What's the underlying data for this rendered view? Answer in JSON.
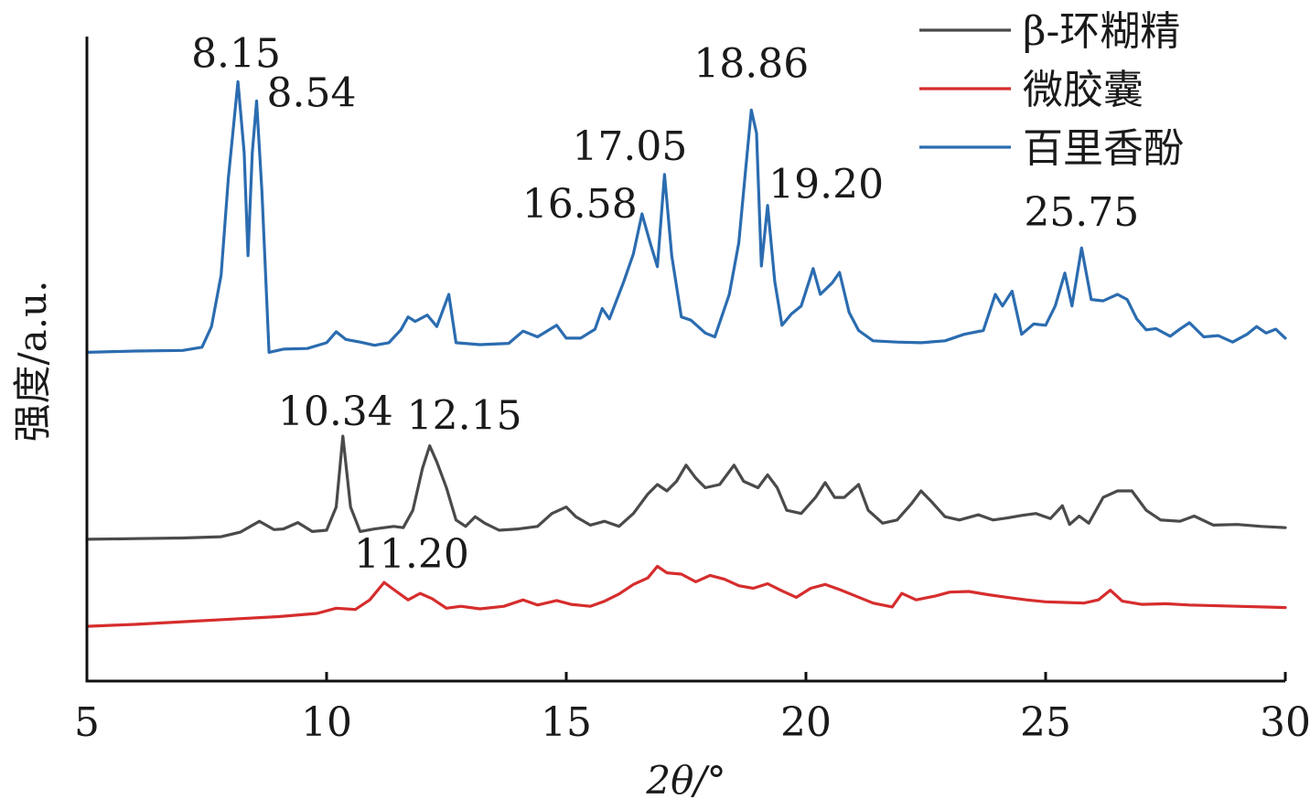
{
  "chart_data": {
    "type": "line",
    "title": "",
    "xlabel": "2θ/°",
    "ylabel": "强度/a.u.",
    "xlim": [
      5,
      30
    ],
    "ylim": [
      0,
      100
    ],
    "x_ticks": [
      "5",
      "10",
      "15",
      "20",
      "25",
      "30"
    ],
    "x_tick_values": [
      5,
      10,
      15,
      20,
      25,
      30
    ],
    "grid": false,
    "legend_position": "top-right",
    "series": [
      {
        "name": "β-环糊精",
        "color": "#4a4a4a",
        "points": [
          [
            5,
            22
          ],
          [
            6,
            22.1
          ],
          [
            7,
            22.2
          ],
          [
            7.8,
            22.4
          ],
          [
            8.2,
            23.1
          ],
          [
            8.6,
            24.8
          ],
          [
            8.9,
            23.5
          ],
          [
            9.1,
            23.6
          ],
          [
            9.4,
            24.6
          ],
          [
            9.7,
            23.2
          ],
          [
            10.0,
            23.4
          ],
          [
            10.2,
            27
          ],
          [
            10.34,
            38
          ],
          [
            10.5,
            27
          ],
          [
            10.7,
            23.2
          ],
          [
            11.0,
            23.6
          ],
          [
            11.4,
            24
          ],
          [
            11.6,
            23.8
          ],
          [
            11.8,
            26.5
          ],
          [
            12.0,
            33
          ],
          [
            12.15,
            36.5
          ],
          [
            12.3,
            34
          ],
          [
            12.5,
            30
          ],
          [
            12.7,
            25
          ],
          [
            12.9,
            24
          ],
          [
            13.1,
            25.5
          ],
          [
            13.3,
            24.5
          ],
          [
            13.6,
            23.4
          ],
          [
            14.0,
            23.6
          ],
          [
            14.4,
            24
          ],
          [
            14.7,
            26
          ],
          [
            15.0,
            27
          ],
          [
            15.2,
            25.5
          ],
          [
            15.5,
            24.2
          ],
          [
            15.8,
            24.8
          ],
          [
            16.1,
            24
          ],
          [
            16.4,
            26
          ],
          [
            16.7,
            29
          ],
          [
            16.9,
            30.5
          ],
          [
            17.1,
            29.5
          ],
          [
            17.3,
            31
          ],
          [
            17.5,
            33.5
          ],
          [
            17.7,
            31.5
          ],
          [
            17.9,
            30
          ],
          [
            18.2,
            30.5
          ],
          [
            18.5,
            33.5
          ],
          [
            18.7,
            31
          ],
          [
            19.0,
            30
          ],
          [
            19.2,
            32
          ],
          [
            19.4,
            30
          ],
          [
            19.6,
            26.5
          ],
          [
            19.9,
            26
          ],
          [
            20.2,
            28.5
          ],
          [
            20.4,
            30.8
          ],
          [
            20.6,
            28.5
          ],
          [
            20.8,
            28.5
          ],
          [
            21.1,
            30.5
          ],
          [
            21.3,
            26.5
          ],
          [
            21.6,
            24.5
          ],
          [
            21.9,
            25
          ],
          [
            22.2,
            27.5
          ],
          [
            22.4,
            29.5
          ],
          [
            22.6,
            28
          ],
          [
            22.9,
            25.5
          ],
          [
            23.2,
            25
          ],
          [
            23.6,
            25.8
          ],
          [
            23.9,
            25
          ],
          [
            24.2,
            25.3
          ],
          [
            24.5,
            25.7
          ],
          [
            24.8,
            26
          ],
          [
            25.1,
            25.2
          ],
          [
            25.35,
            27.2
          ],
          [
            25.5,
            24.3
          ],
          [
            25.7,
            25.6
          ],
          [
            25.9,
            24.5
          ],
          [
            26.2,
            28.5
          ],
          [
            26.5,
            29.5
          ],
          [
            26.8,
            29.5
          ],
          [
            27.1,
            26.5
          ],
          [
            27.4,
            25
          ],
          [
            27.8,
            24.8
          ],
          [
            28.1,
            25.6
          ],
          [
            28.5,
            24.2
          ],
          [
            29.0,
            24.3
          ],
          [
            29.5,
            24
          ],
          [
            30,
            23.8
          ]
        ]
      },
      {
        "name": "微胶囊",
        "color": "#d62d2d",
        "points": [
          [
            5,
            8.5
          ],
          [
            6,
            8.8
          ],
          [
            7,
            9.2
          ],
          [
            8,
            9.6
          ],
          [
            9,
            10
          ],
          [
            9.8,
            10.5
          ],
          [
            10.2,
            11.3
          ],
          [
            10.6,
            11.1
          ],
          [
            10.9,
            12.6
          ],
          [
            11.2,
            15.3
          ],
          [
            11.4,
            14.2
          ],
          [
            11.7,
            12.6
          ],
          [
            11.95,
            13.6
          ],
          [
            12.2,
            12.8
          ],
          [
            12.5,
            11.3
          ],
          [
            12.8,
            11.6
          ],
          [
            13.2,
            11.2
          ],
          [
            13.7,
            11.6
          ],
          [
            14.1,
            12.6
          ],
          [
            14.4,
            11.8
          ],
          [
            14.8,
            12.5
          ],
          [
            15.1,
            11.9
          ],
          [
            15.5,
            11.6
          ],
          [
            15.8,
            12.4
          ],
          [
            16.1,
            13.5
          ],
          [
            16.4,
            15
          ],
          [
            16.7,
            16
          ],
          [
            16.9,
            17.8
          ],
          [
            17.1,
            16.8
          ],
          [
            17.4,
            16.6
          ],
          [
            17.7,
            15.4
          ],
          [
            18.0,
            16.4
          ],
          [
            18.3,
            15.8
          ],
          [
            18.6,
            14.8
          ],
          [
            18.9,
            14.4
          ],
          [
            19.2,
            15.1
          ],
          [
            19.5,
            14
          ],
          [
            19.8,
            13
          ],
          [
            20.1,
            14.4
          ],
          [
            20.4,
            15
          ],
          [
            20.7,
            14.2
          ],
          [
            21.0,
            13.3
          ],
          [
            21.4,
            12.1
          ],
          [
            21.8,
            11.5
          ],
          [
            22.0,
            13.6
          ],
          [
            22.3,
            12.6
          ],
          [
            22.7,
            13.2
          ],
          [
            23.0,
            13.8
          ],
          [
            23.4,
            13.9
          ],
          [
            23.8,
            13.4
          ],
          [
            24.2,
            13
          ],
          [
            24.6,
            12.6
          ],
          [
            25.0,
            12.3
          ],
          [
            25.4,
            12.2
          ],
          [
            25.8,
            12.1
          ],
          [
            26.1,
            12.6
          ],
          [
            26.35,
            14.1
          ],
          [
            26.6,
            12.4
          ],
          [
            27.0,
            11.9
          ],
          [
            27.5,
            12
          ],
          [
            28,
            11.8
          ],
          [
            29,
            11.6
          ],
          [
            30,
            11.4
          ]
        ]
      },
      {
        "name": "百里香酚",
        "color": "#2b6cb0",
        "points": [
          [
            5,
            51
          ],
          [
            6,
            51.2
          ],
          [
            7,
            51.3
          ],
          [
            7.4,
            51.8
          ],
          [
            7.6,
            55
          ],
          [
            7.8,
            63
          ],
          [
            7.95,
            78
          ],
          [
            8.15,
            93
          ],
          [
            8.28,
            82
          ],
          [
            8.36,
            66
          ],
          [
            8.45,
            82
          ],
          [
            8.54,
            90
          ],
          [
            8.65,
            76
          ],
          [
            8.8,
            51
          ],
          [
            9.1,
            51.5
          ],
          [
            9.6,
            51.6
          ],
          [
            10.0,
            52.5
          ],
          [
            10.2,
            54.2
          ],
          [
            10.4,
            53
          ],
          [
            10.7,
            52.6
          ],
          [
            11.0,
            52.1
          ],
          [
            11.3,
            52.5
          ],
          [
            11.55,
            54.5
          ],
          [
            11.7,
            56.5
          ],
          [
            11.85,
            55.8
          ],
          [
            12.1,
            56.8
          ],
          [
            12.3,
            55
          ],
          [
            12.55,
            60
          ],
          [
            12.7,
            52.5
          ],
          [
            13.2,
            52.2
          ],
          [
            13.8,
            52.4
          ],
          [
            14.1,
            54.3
          ],
          [
            14.4,
            53.4
          ],
          [
            14.8,
            55.2
          ],
          [
            15.0,
            53.2
          ],
          [
            15.3,
            53.2
          ],
          [
            15.6,
            54.6
          ],
          [
            15.75,
            57.8
          ],
          [
            15.9,
            56.2
          ],
          [
            16.2,
            62
          ],
          [
            16.4,
            66.3
          ],
          [
            16.58,
            72.5
          ],
          [
            16.75,
            68
          ],
          [
            16.9,
            64.3
          ],
          [
            17.05,
            78.6
          ],
          [
            17.2,
            66
          ],
          [
            17.4,
            56.5
          ],
          [
            17.6,
            56
          ],
          [
            17.9,
            54
          ],
          [
            18.1,
            53.4
          ],
          [
            18.4,
            60
          ],
          [
            18.6,
            68
          ],
          [
            18.75,
            80
          ],
          [
            18.86,
            88.6
          ],
          [
            18.97,
            85
          ],
          [
            19.07,
            64.4
          ],
          [
            19.2,
            73.8
          ],
          [
            19.35,
            62
          ],
          [
            19.5,
            55.2
          ],
          [
            19.7,
            57
          ],
          [
            19.9,
            58.2
          ],
          [
            20.15,
            64
          ],
          [
            20.3,
            60
          ],
          [
            20.55,
            61.8
          ],
          [
            20.7,
            63.4
          ],
          [
            20.9,
            57.2
          ],
          [
            21.1,
            54.4
          ],
          [
            21.4,
            52.8
          ],
          [
            21.9,
            52.6
          ],
          [
            22.4,
            52.5
          ],
          [
            22.9,
            52.8
          ],
          [
            23.3,
            53.8
          ],
          [
            23.7,
            54.4
          ],
          [
            23.95,
            60
          ],
          [
            24.1,
            58.2
          ],
          [
            24.3,
            60.5
          ],
          [
            24.5,
            53.8
          ],
          [
            24.75,
            55.4
          ],
          [
            25.0,
            55.2
          ],
          [
            25.2,
            58.2
          ],
          [
            25.4,
            63.3
          ],
          [
            25.55,
            58.2
          ],
          [
            25.75,
            67.2
          ],
          [
            25.95,
            59.2
          ],
          [
            26.2,
            59
          ],
          [
            26.5,
            60
          ],
          [
            26.7,
            59.2
          ],
          [
            26.9,
            56.2
          ],
          [
            27.1,
            54.5
          ],
          [
            27.3,
            54.7
          ],
          [
            27.6,
            53.5
          ],
          [
            27.8,
            54.6
          ],
          [
            28.0,
            55.6
          ],
          [
            28.3,
            53.4
          ],
          [
            28.6,
            53.6
          ],
          [
            28.9,
            52.6
          ],
          [
            29.2,
            53.8
          ],
          [
            29.4,
            55
          ],
          [
            29.6,
            54
          ],
          [
            29.8,
            54.6
          ],
          [
            30,
            53.2
          ]
        ]
      }
    ],
    "peak_labels": [
      {
        "text": "8.15",
        "x": 8.15,
        "y": 93,
        "series": 2
      },
      {
        "text": "8.54",
        "x": 8.54,
        "y": 90,
        "series": 2
      },
      {
        "text": "16.58",
        "x": 16.58,
        "y": 72.5,
        "series": 2
      },
      {
        "text": "17.05",
        "x": 17.05,
        "y": 78.6,
        "series": 2
      },
      {
        "text": "18.86",
        "x": 18.86,
        "y": 88.6,
        "series": 2
      },
      {
        "text": "19.20",
        "x": 19.2,
        "y": 73.8,
        "series": 2
      },
      {
        "text": "25.75",
        "x": 25.75,
        "y": 67.2,
        "series": 2
      },
      {
        "text": "10.34",
        "x": 10.34,
        "y": 38,
        "series": 0
      },
      {
        "text": "12.15",
        "x": 12.15,
        "y": 36.5,
        "series": 0
      },
      {
        "text": "11.20",
        "x": 11.2,
        "y": 15.3,
        "series": 1
      }
    ]
  }
}
